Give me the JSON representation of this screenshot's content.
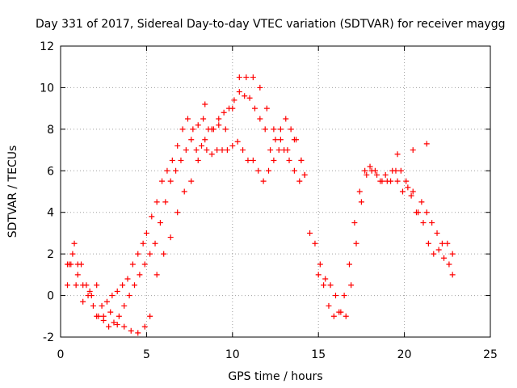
{
  "chart_data": {
    "type": "scatter",
    "title": "Day 331 of 2017, Sidereal Day-to-day VTEC variation (SDTVAR) for receiver maygg",
    "xlabel": "GPS time / hours",
    "ylabel": "SDTVAR / TECUs",
    "xlim": [
      0,
      25
    ],
    "ylim": [
      -2,
      12
    ],
    "x_ticks": [
      "0",
      "5",
      "10",
      "15",
      "20",
      "25"
    ],
    "y_ticks": [
      "-2",
      "0",
      "2",
      "4",
      "6",
      "8",
      "10",
      "12"
    ],
    "grid": true,
    "marker": "+",
    "series": [
      {
        "name": "SDTVAR",
        "color": "#ff0000",
        "x": [
          0.4,
          0.6,
          0.8,
          1.0,
          1.2,
          1.5,
          1.8,
          2.1,
          2.4,
          2.7,
          3.0,
          3.3,
          3.6,
          3.9,
          4.2,
          4.5,
          4.8,
          5.0,
          5.3,
          5.6,
          5.9,
          6.2,
          6.5,
          6.8,
          7.1,
          7.4,
          7.7,
          8.0,
          8.3,
          8.6,
          8.9,
          9.2,
          9.5,
          9.8,
          10.1,
          10.4,
          10.7,
          11.0,
          11.3,
          11.6,
          11.9,
          12.2,
          12.5,
          12.8,
          13.1,
          13.4,
          13.7,
          14.0,
          14.2,
          0.4,
          0.7,
          1.0,
          1.3,
          1.6,
          1.9,
          2.2,
          2.5,
          2.8,
          3.1,
          3.4,
          3.7,
          4.0,
          4.3,
          4.6,
          4.9,
          5.2,
          5.5,
          5.8,
          6.1,
          6.4,
          6.7,
          7.0,
          7.3,
          7.6,
          7.9,
          8.2,
          8.5,
          8.8,
          9.1,
          9.4,
          9.7,
          10.0,
          10.3,
          10.6,
          10.9,
          11.2,
          11.5,
          11.8,
          12.1,
          12.4,
          12.7,
          13.0,
          13.3,
          13.6,
          13.9,
          14.2,
          0.5,
          0.9,
          1.3,
          1.7,
          2.1,
          2.5,
          2.9,
          3.3,
          3.7,
          4.1,
          4.5,
          4.9,
          5.2,
          5.6,
          6.0,
          6.4,
          6.8,
          7.2,
          7.6,
          8.0,
          8.4,
          8.8,
          9.2,
          9.6,
          10.0,
          10.4,
          10.8,
          11.2,
          11.6,
          12.0,
          12.4,
          12.8,
          13.2,
          13.6,
          14.0,
          14.5,
          14.8,
          15.1,
          15.4,
          15.7,
          16.0,
          16.3,
          16.6,
          16.9,
          17.2,
          17.5,
          17.8,
          18.1,
          18.4,
          18.7,
          19.0,
          19.3,
          19.6,
          19.9,
          20.2,
          20.5,
          20.8,
          21.1,
          21.4,
          21.7,
          22.0,
          22.3,
          22.6,
          22.8,
          15.0,
          15.3,
          15.6,
          15.9,
          16.2,
          16.5,
          16.8,
          17.1,
          17.4,
          17.7,
          18.0,
          18.3,
          18.6,
          18.9,
          19.2,
          19.5,
          19.8,
          20.1,
          20.4,
          20.7,
          21.0,
          21.3,
          21.6,
          21.9,
          22.2,
          22.5,
          22.8,
          8.4,
          19.6,
          20.5,
          21.3
        ],
        "y": [
          0.5,
          1.5,
          2.5,
          1.0,
          1.5,
          0.5,
          0.0,
          -1.0,
          -0.5,
          -0.3,
          0.0,
          0.2,
          0.5,
          0.8,
          1.5,
          2.0,
          2.5,
          3.0,
          3.8,
          4.5,
          5.5,
          6.0,
          6.5,
          7.2,
          8.0,
          8.5,
          8.0,
          8.2,
          8.5,
          8.0,
          8.0,
          8.5,
          8.8,
          9.0,
          9.4,
          9.8,
          9.6,
          9.5,
          9.0,
          8.5,
          8.0,
          7.0,
          7.5,
          8.0,
          8.5,
          8.0,
          7.5,
          6.5,
          5.8,
          1.5,
          2.0,
          1.5,
          0.5,
          0.0,
          -0.5,
          -1.0,
          -1.2,
          -1.5,
          -1.3,
          -1.0,
          -0.5,
          0.0,
          0.5,
          1.0,
          1.5,
          2.0,
          2.5,
          3.5,
          4.5,
          5.5,
          6.0,
          6.5,
          7.0,
          7.5,
          7.0,
          7.2,
          7.0,
          6.8,
          7.0,
          7.0,
          7.0,
          7.2,
          7.4,
          7.0,
          6.5,
          6.5,
          6.0,
          5.5,
          6.0,
          6.5,
          7.0,
          7.0,
          6.5,
          6.0,
          5.5,
          5.8,
          1.5,
          0.5,
          -0.3,
          0.2,
          0.5,
          -1.0,
          -0.8,
          -1.4,
          -1.5,
          -1.7,
          -1.8,
          -1.5,
          -1.0,
          1.0,
          2.0,
          2.8,
          4.0,
          5.0,
          5.5,
          6.5,
          7.5,
          8.0,
          8.2,
          8.0,
          9.0,
          10.5,
          10.5,
          10.5,
          10.0,
          9.0,
          8.0,
          7.5,
          7.0,
          7.5,
          6.5,
          3.0,
          2.5,
          1.5,
          0.8,
          0.5,
          0.0,
          -0.8,
          -1.0,
          0.5,
          2.5,
          4.5,
          5.8,
          6.0,
          5.8,
          5.5,
          5.5,
          6.0,
          5.5,
          5.0,
          5.2,
          5.0,
          4.0,
          3.5,
          2.5,
          2.0,
          2.2,
          1.8,
          1.5,
          1.0,
          1.0,
          0.5,
          -0.5,
          -1.0,
          -0.8,
          0.0,
          1.5,
          3.5,
          5.0,
          6.0,
          6.2,
          6.0,
          5.5,
          5.8,
          5.5,
          6.0,
          6.0,
          5.5,
          4.8,
          4.0,
          4.5,
          4.0,
          3.5,
          3.0,
          2.5,
          2.5,
          2.0,
          9.2,
          6.8,
          7.0,
          7.3
        ]
      }
    ]
  }
}
